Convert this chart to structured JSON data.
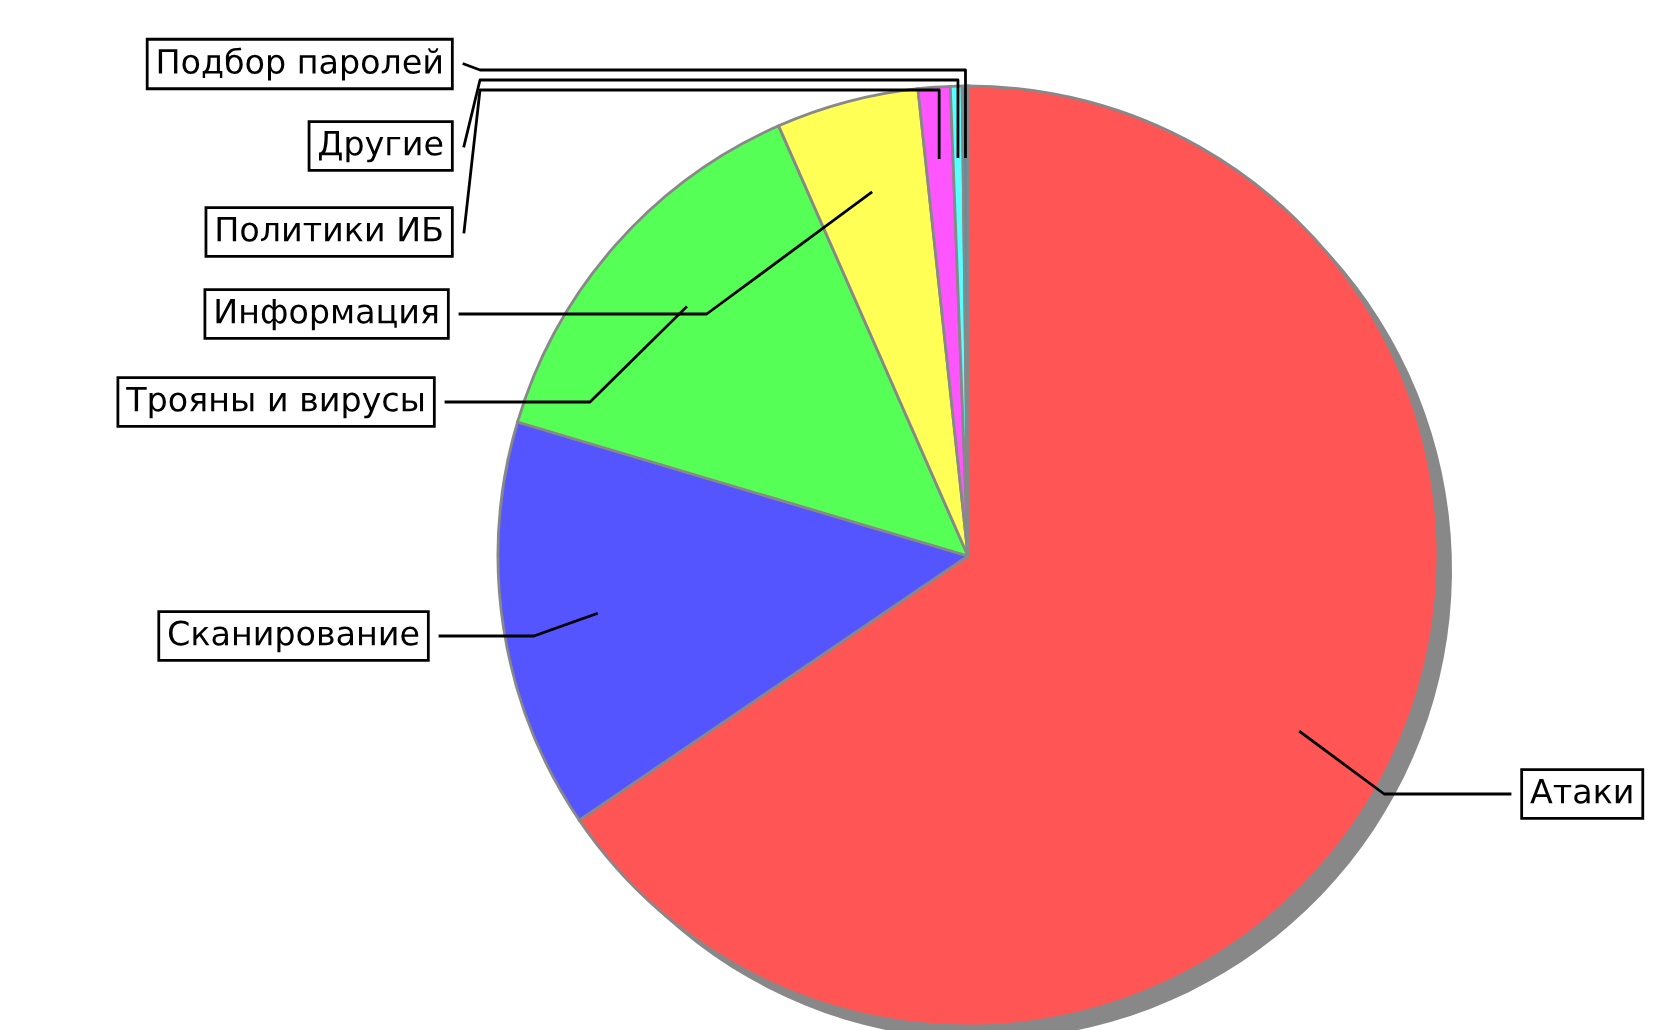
{
  "chart_data": {
    "type": "pie",
    "categories": [
      "Атаки",
      "Сканирование",
      "Трояны и вирусы",
      "Информация",
      "Политики ИБ",
      "Другие",
      "Подбор паролей"
    ],
    "values": [
      65.5,
      14.1,
      13.8,
      4.9,
      1.1,
      0.4,
      0.2
    ],
    "colors": [
      "#ff5555",
      "#5555ff",
      "#55ff55",
      "#ffff55",
      "#ff55ff",
      "#55ffff",
      "#5a8ca8"
    ]
  }
}
